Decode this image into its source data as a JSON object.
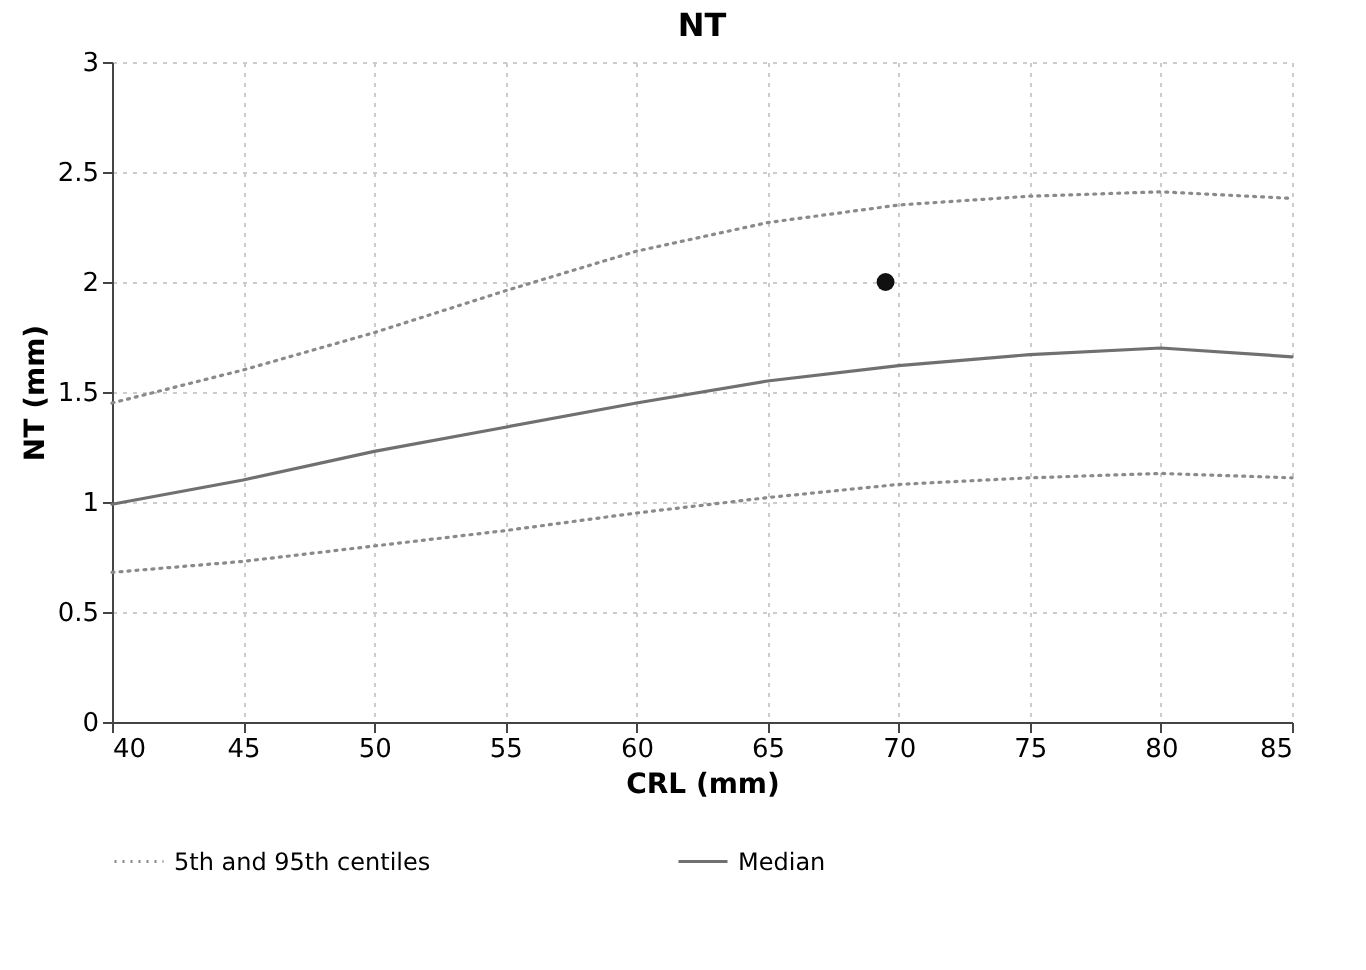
{
  "chart_data": {
    "type": "line",
    "title": "NT",
    "xlabel": "CRL (mm)",
    "ylabel": "NT (mm)",
    "xlim": [
      40,
      85
    ],
    "xticks": [
      40,
      45,
      50,
      55,
      60,
      65,
      70,
      75,
      80,
      85
    ],
    "ylim": [
      0,
      3
    ],
    "yticks": [
      0,
      0.5,
      1,
      1.5,
      2,
      2.5,
      3
    ],
    "grid": true,
    "legend": "bottom",
    "x": [
      40,
      45,
      50,
      55,
      60,
      65,
      70,
      75,
      80,
      85
    ],
    "series": [
      {
        "name": "5th and 95th centiles",
        "color": "#8a8a8a",
        "line_style": "dotted",
        "values": [
          1.45,
          1.6,
          1.77,
          1.96,
          2.14,
          2.27,
          2.35,
          2.39,
          2.41,
          2.38
        ]
      },
      {
        "color": "#8a8a8a",
        "line_style": "dotted",
        "values": [
          0.68,
          0.73,
          0.8,
          0.87,
          0.95,
          1.02,
          1.08,
          1.11,
          1.13,
          1.11
        ]
      },
      {
        "name": "Median",
        "color": "#707070",
        "line_style": "solid",
        "values": [
          0.99,
          1.1,
          1.23,
          1.34,
          1.45,
          1.55,
          1.62,
          1.67,
          1.7,
          1.66
        ]
      },
      {
        "type": "scatter",
        "marker": "circle",
        "color": "#111111",
        "x": [
          69.5
        ],
        "values": [
          2.0
        ]
      }
    ]
  }
}
